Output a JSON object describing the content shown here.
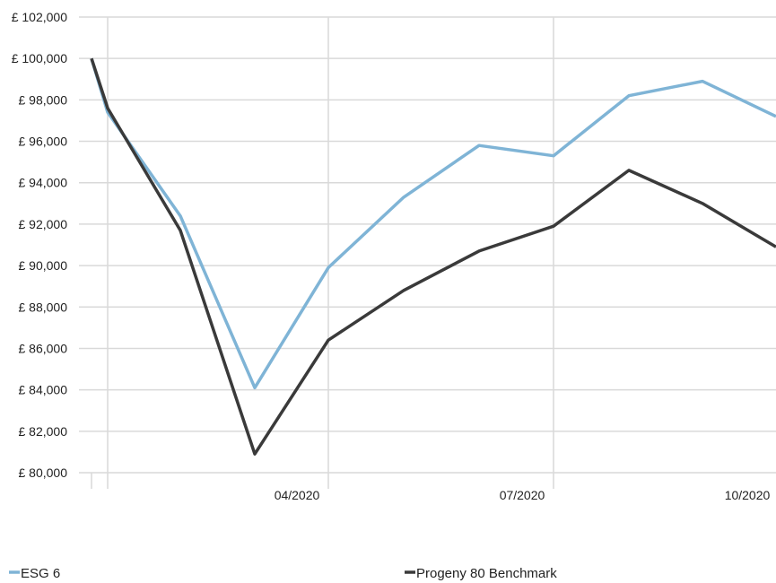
{
  "chart_data": {
    "type": "line",
    "title": "",
    "xlabel": "",
    "ylabel": "",
    "ylim": [
      80000,
      102000
    ],
    "y_ticks": [
      80000,
      82000,
      84000,
      86000,
      88000,
      90000,
      92000,
      94000,
      96000,
      98000,
      100000,
      102000
    ],
    "y_tick_labels": [
      "£ 80,000",
      "£ 82,000",
      "£ 84,000",
      "£ 86,000",
      "£ 88,000",
      "£ 90,000",
      "£ 92,000",
      "£ 94,000",
      "£ 96,000",
      "£ 98,000",
      "£ 100,000",
      "£ 102,000"
    ],
    "x_tick_labels": [
      "04/2020",
      "07/2020",
      "10/2020"
    ],
    "grid": true,
    "legend_position": "bottom",
    "series": [
      {
        "name": "ESG 6",
        "color": "#7fb4d6",
        "values": [
          100000,
          97400,
          92400,
          84100,
          89900,
          93300,
          95800,
          95300,
          98200,
          98900,
          97200
        ]
      },
      {
        "name": "Progeny 80 Benchmark",
        "color": "#3a3a3a",
        "values": [
          100000,
          97600,
          91700,
          80900,
          86400,
          88800,
          90700,
          91900,
          94600,
          93000,
          90900
        ]
      }
    ]
  }
}
